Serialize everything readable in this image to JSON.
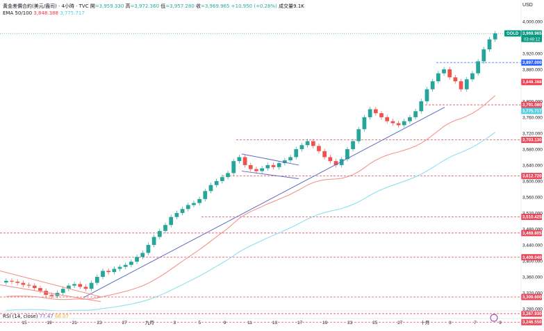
{
  "header": {
    "symbol": "黃金差價合約(美元/盎司) · 4小時 · TVC",
    "open_label": "開",
    "open_value": "=3,959.330",
    "high_label": "高",
    "high_value": "=3,972.360",
    "low_label": "低",
    "low_value": "=3,957.280",
    "close_label": "收",
    "close_value": "=3,969.965",
    "change": "+10.950 (+0.28%)",
    "volume": "成交量9.1K"
  },
  "indicators": {
    "ema_label": "EMA 50/100",
    "ema50": "3,848.388",
    "ema100": "3,775.717",
    "rsi_label": "RSI (14, close)",
    "rsi_a": "77.47",
    "rsi_b": "66.07"
  },
  "colors": {
    "up": "#26a69a",
    "down": "#ef5350",
    "ema50": "#f28b82",
    "ema100": "#80deea",
    "trendline": "#5c6bc0",
    "level": "#e8495a",
    "last_price_badge": "#089981"
  },
  "chart_data": {
    "type": "candlestick",
    "currency_label": "USD",
    "ylim": [
      3280,
      4005
    ],
    "y_ticks": [
      4000,
      3920,
      3880,
      3800,
      3760,
      3720,
      3680,
      3640,
      3600,
      3560,
      3520,
      3480,
      3440,
      3400,
      3360,
      3320,
      3280
    ],
    "x_ticks": [
      "15",
      "19",
      "21",
      "23",
      "27",
      "九月",
      "3",
      "5",
      "9",
      "11",
      "13",
      "17",
      "19",
      "23",
      "25",
      "27",
      "十月",
      "3",
      "7",
      "9"
    ],
    "price_badges": [
      {
        "label": "GOLD",
        "value": "3,969.965",
        "sub": "03:48:12",
        "kind": "last"
      },
      {
        "value": "3,897.000",
        "kind": "blue"
      },
      {
        "value": "3,848.388",
        "kind": "ema50"
      },
      {
        "value": "3,791.080",
        "kind": "level"
      },
      {
        "value": "3,775.717",
        "kind": "ema100"
      },
      {
        "value": "3,703.130",
        "kind": "level"
      },
      {
        "value": "3,612.720",
        "kind": "level"
      },
      {
        "value": "3,510.425",
        "kind": "level"
      },
      {
        "value": "3,469.805",
        "kind": "level"
      },
      {
        "value": "3,409.040",
        "kind": "level"
      },
      {
        "value": "3,309.600",
        "kind": "level"
      },
      {
        "value": "3,267.930",
        "kind": "level"
      },
      {
        "value": "3,246.550",
        "kind": "level"
      }
    ],
    "levels": [
      3897.0,
      3791.08,
      3703.13,
      3612.72,
      3510.425,
      3469.805,
      3409.04,
      3309.6,
      3267.93,
      3246.55
    ],
    "series": [
      {
        "name": "close",
        "values": [
          3350,
          3348,
          3345,
          3340,
          3338,
          3332,
          3325,
          3315,
          3312,
          3320,
          3330,
          3338,
          3342,
          3335,
          3330,
          3345,
          3360,
          3375,
          3372,
          3380,
          3385,
          3390,
          3398,
          3410,
          3420,
          3440,
          3460,
          3475,
          3490,
          3510,
          3520,
          3530,
          3540,
          3545,
          3555,
          3575,
          3590,
          3600,
          3610,
          3620,
          3650,
          3660,
          3640,
          3630,
          3625,
          3632,
          3640,
          3635,
          3645,
          3652,
          3660,
          3680,
          3690,
          3700,
          3688,
          3675,
          3660,
          3650,
          3640,
          3655,
          3680,
          3700,
          3730,
          3760,
          3780,
          3770,
          3760,
          3750,
          3745,
          3740,
          3750,
          3760,
          3775,
          3800,
          3830,
          3850,
          3870,
          3880,
          3860,
          3850,
          3830,
          3855,
          3870,
          3900,
          3930,
          3955,
          3969.965
        ]
      }
    ]
  }
}
